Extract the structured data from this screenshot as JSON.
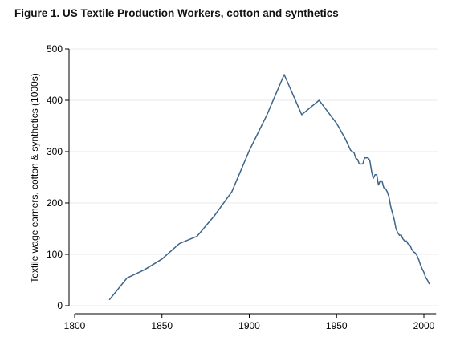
{
  "chart_data": {
    "type": "line",
    "title": "Figure 1. US Textile Production Workers, cotton and synthetics",
    "xlabel": "",
    "ylabel": "Textile wage earners, cotton & synthetics (1000s)",
    "xlim": [
      1800,
      2007
    ],
    "ylim": [
      0,
      500
    ],
    "xticks": [
      1800,
      1850,
      1900,
      1950,
      2000
    ],
    "yticks": [
      0,
      100,
      200,
      300,
      400,
      500
    ],
    "grid": true,
    "line_color": "#3d6589",
    "series": [
      {
        "points": [
          [
            1820,
            12
          ],
          [
            1830,
            54
          ],
          [
            1840,
            70
          ],
          [
            1850,
            91
          ],
          [
            1860,
            121
          ],
          [
            1870,
            135
          ],
          [
            1880,
            175
          ],
          [
            1890,
            222
          ],
          [
            1900,
            302
          ],
          [
            1910,
            371
          ],
          [
            1920,
            450
          ],
          [
            1930,
            372
          ],
          [
            1940,
            400
          ],
          [
            1950,
            355
          ],
          [
            1955,
            325
          ],
          [
            1958,
            303
          ],
          [
            1960,
            298
          ],
          [
            1961,
            287
          ],
          [
            1962,
            285
          ],
          [
            1963,
            276
          ],
          [
            1965,
            276
          ],
          [
            1966,
            288
          ],
          [
            1968,
            288
          ],
          [
            1969,
            283
          ],
          [
            1970,
            262
          ],
          [
            1971,
            248
          ],
          [
            1972,
            255
          ],
          [
            1973,
            255
          ],
          [
            1974,
            235
          ],
          [
            1975,
            243
          ],
          [
            1976,
            243
          ],
          [
            1977,
            230
          ],
          [
            1978,
            228
          ],
          [
            1979,
            222
          ],
          [
            1980,
            212
          ],
          [
            1981,
            193
          ],
          [
            1982,
            180
          ],
          [
            1983,
            168
          ],
          [
            1984,
            150
          ],
          [
            1985,
            142
          ],
          [
            1986,
            137
          ],
          [
            1987,
            138
          ],
          [
            1988,
            130
          ],
          [
            1989,
            126
          ],
          [
            1990,
            126
          ],
          [
            1991,
            120
          ],
          [
            1992,
            118
          ],
          [
            1993,
            110
          ],
          [
            1994,
            105
          ],
          [
            1995,
            103
          ],
          [
            1996,
            98
          ],
          [
            1997,
            90
          ],
          [
            1998,
            80
          ],
          [
            1999,
            72
          ],
          [
            2000,
            65
          ],
          [
            2001,
            55
          ],
          [
            2002,
            50
          ],
          [
            2003,
            43
          ]
        ]
      }
    ]
  }
}
